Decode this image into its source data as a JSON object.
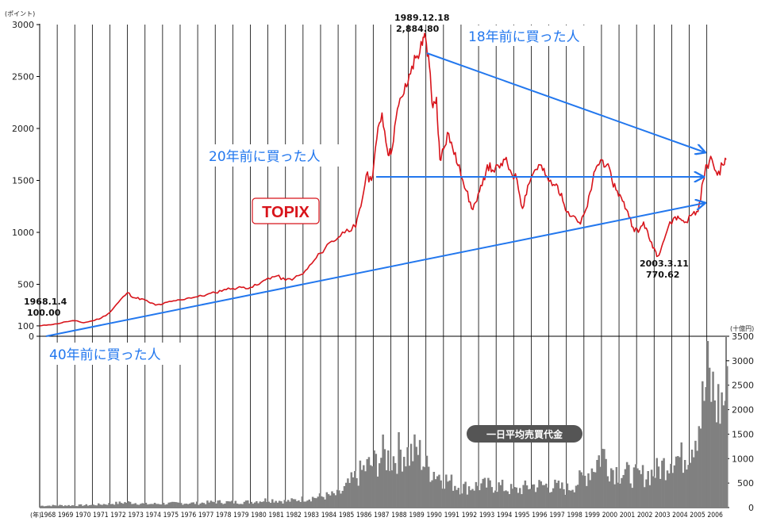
{
  "chart_data": [
    {
      "type": "line",
      "title": "TOPIX",
      "ylabel": "(ポイント)",
      "ylim": [
        0,
        3000
      ],
      "yticks": [
        "0",
        "100",
        "500",
        "1000",
        "1500",
        "2000",
        "2500",
        "3000"
      ],
      "x_years": [
        "1968",
        "1969",
        "1970",
        "1971",
        "1972",
        "1973",
        "1974",
        "1975",
        "1976",
        "1977",
        "1978",
        "1979",
        "1980",
        "1981",
        "1982",
        "1983",
        "1984",
        "1985",
        "1986",
        "1987",
        "1988",
        "1989",
        "1990",
        "1991",
        "1992",
        "1993",
        "1994",
        "1995",
        "1996",
        "1997",
        "1998",
        "1999",
        "2000",
        "2001",
        "2002",
        "2003",
        "2004",
        "2005",
        "2006"
      ],
      "series": [
        {
          "name": "TOPIX",
          "color": "#d8141b",
          "points": [
            [
              1968.0,
              100
            ],
            [
              1968.5,
              110
            ],
            [
              1969.0,
              120
            ],
            [
              1969.5,
              140
            ],
            [
              1970.0,
              150
            ],
            [
              1970.5,
              130
            ],
            [
              1971.0,
              148
            ],
            [
              1971.5,
              175
            ],
            [
              1972.0,
              230
            ],
            [
              1972.5,
              330
            ],
            [
              1973.0,
              420
            ],
            [
              1973.4,
              370
            ],
            [
              1973.8,
              360
            ],
            [
              1974.2,
              330
            ],
            [
              1974.6,
              300
            ],
            [
              1975.0,
              310
            ],
            [
              1975.5,
              335
            ],
            [
              1976.0,
              350
            ],
            [
              1976.5,
              370
            ],
            [
              1977.0,
              380
            ],
            [
              1977.5,
              400
            ],
            [
              1978.0,
              420
            ],
            [
              1978.5,
              450
            ],
            [
              1979.0,
              460
            ],
            [
              1979.5,
              470
            ],
            [
              1980.0,
              470
            ],
            [
              1980.5,
              500
            ],
            [
              1981.0,
              560
            ],
            [
              1981.5,
              580
            ],
            [
              1982.0,
              540
            ],
            [
              1982.5,
              560
            ],
            [
              1983.0,
              600
            ],
            [
              1983.5,
              700
            ],
            [
              1984.0,
              800
            ],
            [
              1984.5,
              900
            ],
            [
              1985.0,
              950
            ],
            [
              1985.5,
              1030
            ],
            [
              1986.0,
              1050
            ],
            [
              1986.3,
              1250
            ],
            [
              1986.6,
              1550
            ],
            [
              1986.9,
              1500
            ],
            [
              1987.2,
              1900
            ],
            [
              1987.5,
              2150
            ],
            [
              1987.8,
              1800
            ],
            [
              1988.0,
              1750
            ],
            [
              1988.3,
              2100
            ],
            [
              1988.6,
              2300
            ],
            [
              1988.9,
              2400
            ],
            [
              1989.2,
              2600
            ],
            [
              1989.5,
              2700
            ],
            [
              1989.8,
              2800
            ],
            [
              1989.97,
              2885
            ],
            [
              1990.2,
              2600
            ],
            [
              1990.4,
              2200
            ],
            [
              1990.6,
              2300
            ],
            [
              1990.8,
              1700
            ],
            [
              1991.0,
              1800
            ],
            [
              1991.3,
              1950
            ],
            [
              1991.6,
              1750
            ],
            [
              1991.9,
              1650
            ],
            [
              1992.3,
              1400
            ],
            [
              1992.6,
              1230
            ],
            [
              1992.9,
              1300
            ],
            [
              1993.2,
              1450
            ],
            [
              1993.5,
              1650
            ],
            [
              1993.8,
              1600
            ],
            [
              1994.2,
              1620
            ],
            [
              1994.5,
              1700
            ],
            [
              1994.8,
              1600
            ],
            [
              1995.2,
              1500
            ],
            [
              1995.5,
              1230
            ],
            [
              1995.8,
              1450
            ],
            [
              1996.2,
              1600
            ],
            [
              1996.5,
              1650
            ],
            [
              1996.8,
              1550
            ],
            [
              1997.2,
              1450
            ],
            [
              1997.5,
              1450
            ],
            [
              1997.8,
              1300
            ],
            [
              1998.1,
              1200
            ],
            [
              1998.5,
              1150
            ],
            [
              1998.8,
              1080
            ],
            [
              1999.2,
              1250
            ],
            [
              1999.5,
              1500
            ],
            [
              1999.8,
              1650
            ],
            [
              2000.0,
              1700
            ],
            [
              2000.3,
              1650
            ],
            [
              2000.6,
              1500
            ],
            [
              2000.9,
              1400
            ],
            [
              2001.2,
              1300
            ],
            [
              2001.5,
              1200
            ],
            [
              2001.8,
              1050
            ],
            [
              2002.1,
              1000
            ],
            [
              2002.4,
              1100
            ],
            [
              2002.7,
              950
            ],
            [
              2003.0,
              850
            ],
            [
              2003.2,
              771
            ],
            [
              2003.5,
              900
            ],
            [
              2003.8,
              1050
            ],
            [
              2004.2,
              1150
            ],
            [
              2004.5,
              1130
            ],
            [
              2004.8,
              1100
            ],
            [
              2005.2,
              1180
            ],
            [
              2005.5,
              1200
            ],
            [
              2005.8,
              1500
            ],
            [
              2006.0,
              1650
            ],
            [
              2006.3,
              1700
            ],
            [
              2006.6,
              1550
            ],
            [
              2006.9,
              1650
            ],
            [
              2007.1,
              1700
            ]
          ]
        }
      ],
      "annotations": {
        "start_date": "1968.1.4",
        "start_value": "100.00",
        "peak_date": "1989.12.18",
        "peak_value": "2,884.80",
        "low_date": "2003.3.11",
        "low_value": "770.62"
      }
    },
    {
      "type": "bar",
      "title": "一日平均売買代金",
      "ylabel": "(十億円)",
      "ylim": [
        0,
        3500
      ],
      "yticks": [
        "0",
        "500",
        "1000",
        "1500",
        "2000",
        "2500",
        "3000",
        "3500"
      ],
      "xlabel": "(年)",
      "color": "#808080",
      "points": [
        [
          1968,
          40
        ],
        [
          1969,
          50
        ],
        [
          1970,
          50
        ],
        [
          1971,
          60
        ],
        [
          1972,
          90
        ],
        [
          1973,
          120
        ],
        [
          1974,
          80
        ],
        [
          1975,
          90
        ],
        [
          1976,
          100
        ],
        [
          1977,
          100
        ],
        [
          1978,
          130
        ],
        [
          1979,
          120
        ],
        [
          1980,
          130
        ],
        [
          1981,
          180
        ],
        [
          1982,
          140
        ],
        [
          1983,
          200
        ],
        [
          1984,
          250
        ],
        [
          1985,
          300
        ],
        [
          1986,
          700
        ],
        [
          1986.5,
          900
        ],
        [
          1987,
          1000
        ],
        [
          1987.5,
          1200
        ],
        [
          1988,
          1100
        ],
        [
          1988.5,
          1300
        ],
        [
          1989,
          1200
        ],
        [
          1989.5,
          1300
        ],
        [
          1990,
          900
        ],
        [
          1990.5,
          800
        ],
        [
          1991,
          650
        ],
        [
          1992,
          450
        ],
        [
          1993,
          500
        ],
        [
          1994,
          500
        ],
        [
          1995,
          380
        ],
        [
          1996,
          500
        ],
        [
          1997,
          500
        ],
        [
          1998,
          420
        ],
        [
          1999,
          700
        ],
        [
          1999.6,
          1000
        ],
        [
          2000,
          1250
        ],
        [
          2000.5,
          900
        ],
        [
          2001,
          800
        ],
        [
          2002,
          700
        ],
        [
          2003,
          800
        ],
        [
          2003.6,
          1000
        ],
        [
          2004,
          1200
        ],
        [
          2004.5,
          1100
        ],
        [
          2005,
          1400
        ],
        [
          2005.6,
          2100
        ],
        [
          2006,
          2900
        ],
        [
          2006.3,
          2600
        ],
        [
          2006.6,
          2300
        ],
        [
          2007,
          2500
        ]
      ]
    }
  ],
  "labels": {
    "topix_box": "TOPIX",
    "arrow_18": "18年前に買った人",
    "arrow_20": "20年前に買った人",
    "arrow_40": "40年前に買った人",
    "volume_title": "一日平均売買代金",
    "top_unit": "(ポイント)",
    "bottom_unit": "(十億円)",
    "year_unit": "(年)"
  },
  "colors": {
    "line": "#d8141b",
    "arrow": "#2277ee",
    "volume": "#808080",
    "grid": "#000000"
  }
}
